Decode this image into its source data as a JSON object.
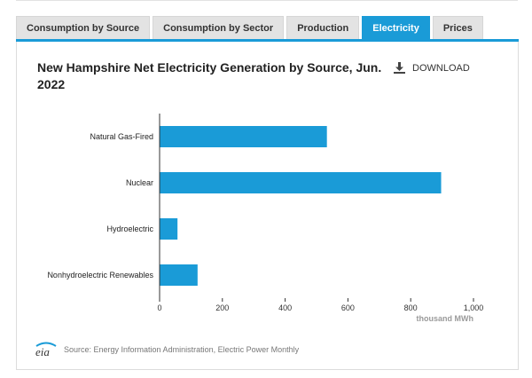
{
  "tabs": [
    {
      "label": "Consumption by Source",
      "active": false
    },
    {
      "label": "Consumption by Sector",
      "active": false
    },
    {
      "label": "Production",
      "active": false
    },
    {
      "label": "Electricity",
      "active": true
    },
    {
      "label": "Prices",
      "active": false
    }
  ],
  "download_label": "DOWNLOAD",
  "source_text": "Source: Energy Information Administration, Electric Power Monthly",
  "logo_text": "eia",
  "colors": {
    "accent": "#1a9bd7",
    "bar": "#1a9bd7"
  },
  "chart_data": {
    "type": "bar",
    "orientation": "horizontal",
    "title": "New Hampshire Net Electricity Generation by Source, Jun. 2022",
    "xlabel": "thousand MWh",
    "ylabel": "",
    "categories": [
      "Natural Gas-Fired",
      "Nuclear",
      "Hydroelectric",
      "Nonhydroelectric Renewables"
    ],
    "values": [
      533,
      897,
      57,
      121
    ],
    "xlim": [
      0,
      1000
    ],
    "ticks": [
      0,
      200,
      400,
      600,
      800,
      1000
    ],
    "tick_labels": [
      "0",
      "200",
      "400",
      "600",
      "800",
      "1,000"
    ],
    "grid": false,
    "legend": "none"
  }
}
